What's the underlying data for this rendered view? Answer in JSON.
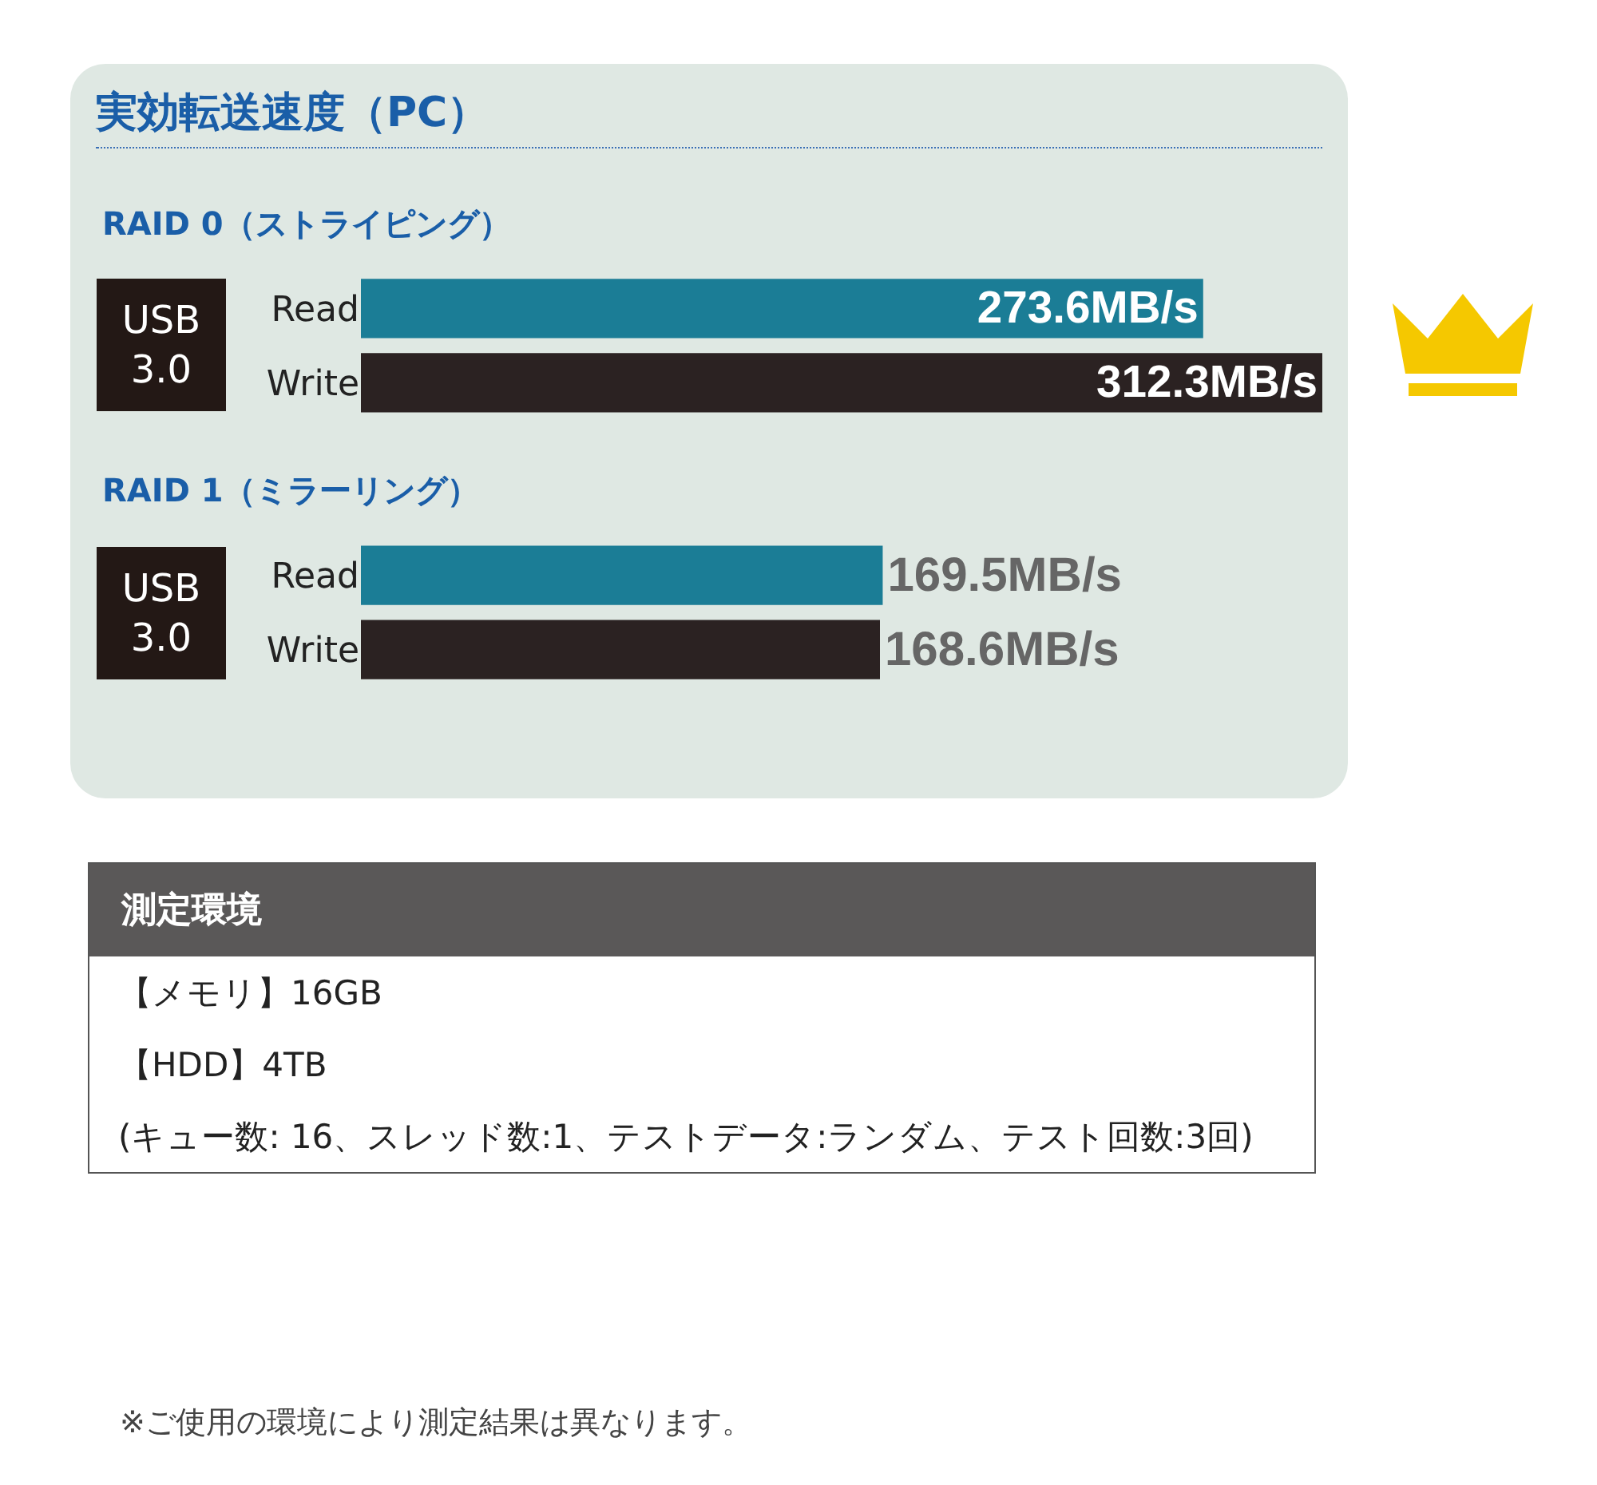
{
  "chart_data": {
    "type": "bar",
    "orientation": "horizontal",
    "title": "実効転送速度（PC）",
    "categories": [
      "Read",
      "Write",
      "Read",
      "Write"
    ],
    "values": [
      273.6,
      312.3,
      169.5,
      168.6
    ],
    "colors": [
      "#1b7d96",
      "#2b2222",
      "#1b7d96",
      "#2b2222"
    ],
    "value_labels": [
      "273.6MB/s",
      "312.3MB/s",
      "169.5MB/s",
      "168.6MB/s"
    ],
    "annotations": [
      "RAID 0（ストライピング）",
      "USB 3.0",
      "RAID 1（ミラーリング）",
      "USB 3.0",
      "測定環境",
      "【メモリ】16GB",
      "【HDD】4TB",
      "(キュー数: 16、スレッド数:1、テストデータ:ランダム、テスト回数:3回)",
      "※ご使用の環境により測定結果は異なります。"
    ]
  }
}
